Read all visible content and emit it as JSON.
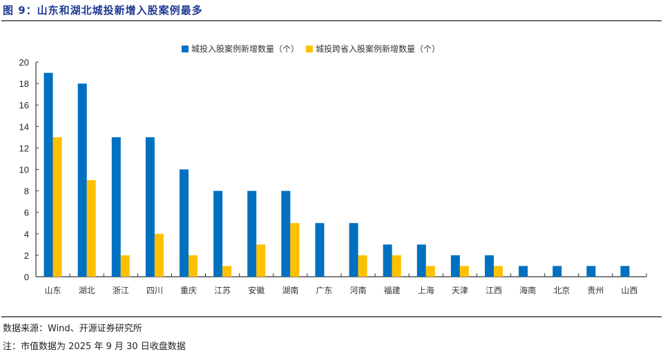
{
  "header": {
    "title": "图 9：山东和湖北城投新增入股案例最多"
  },
  "footer": {
    "source": "数据来源：Wind、开源证券研究所",
    "note": "注：市值数据为 2025 年 9 月 30 日收盘数据"
  },
  "colors": {
    "series1": "#0070C0",
    "series2": "#FFC000",
    "title": "#1F3A93",
    "axis": "#333333"
  },
  "legend": {
    "items": [
      {
        "label": "城投入股案例新增数量（个）",
        "color": "#0070C0"
      },
      {
        "label": "城投跨省入股案例新增数量（个）",
        "color": "#FFC000"
      }
    ]
  },
  "chart_data": {
    "type": "bar",
    "title": "山东和湖北城投新增入股案例最多",
    "xlabel": "",
    "ylabel": "",
    "ylim": [
      0,
      20
    ],
    "yticks": [
      0,
      2,
      4,
      6,
      8,
      10,
      12,
      14,
      16,
      18,
      20
    ],
    "grid": false,
    "legend_position": "top",
    "categories": [
      "山东",
      "湖北",
      "浙江",
      "四川",
      "重庆",
      "江苏",
      "安徽",
      "湖南",
      "广东",
      "河南",
      "福建",
      "上海",
      "天津",
      "江西",
      "海南",
      "北京",
      "贵州",
      "山西"
    ],
    "series": [
      {
        "name": "城投入股案例新增数量（个）",
        "values": [
          19,
          18,
          13,
          13,
          10,
          8,
          8,
          8,
          5,
          5,
          3,
          3,
          2,
          2,
          1,
          1,
          1,
          1
        ]
      },
      {
        "name": "城投跨省入股案例新增数量（个）",
        "values": [
          13,
          9,
          2,
          4,
          2,
          1,
          3,
          5,
          0,
          2,
          2,
          1,
          1,
          1,
          0,
          0,
          0,
          0
        ]
      }
    ]
  }
}
